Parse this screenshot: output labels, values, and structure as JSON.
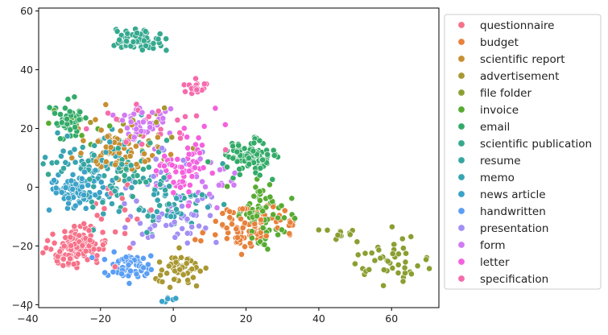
{
  "chart_data": {
    "type": "scatter",
    "title": "",
    "xlabel": "",
    "ylabel": "",
    "xlim": [
      -37,
      73
    ],
    "ylim": [
      -41,
      61
    ],
    "xticks": [
      -40,
      -20,
      0,
      20,
      40,
      60
    ],
    "yticks": [
      -40,
      -20,
      0,
      20,
      40,
      60
    ],
    "grid": false,
    "legend_position": "outside-right",
    "series": [
      {
        "name": "questionnaire",
        "color": "#f77189",
        "clusters": [
          {
            "cx": -27,
            "cy": -21,
            "sx": 3.8,
            "sy": 3.2,
            "n": 140
          },
          {
            "cx": -18,
            "cy": -10,
            "sx": 6,
            "sy": 5,
            "n": 25
          }
        ]
      },
      {
        "name": "budget",
        "color": "#e7813b",
        "clusters": [
          {
            "cx": 19,
            "cy": -14,
            "sx": 5,
            "sy": 3.5,
            "n": 70
          },
          {
            "cx": 28,
            "cy": -10,
            "sx": 3,
            "sy": 2,
            "n": 15
          }
        ]
      },
      {
        "name": "scientific report",
        "color": "#c78f32",
        "clusters": [
          {
            "cx": -14,
            "cy": 12,
            "sx": 5,
            "sy": 4,
            "n": 50
          },
          {
            "cx": -22,
            "cy": 16,
            "sx": 4,
            "sy": 4,
            "n": 20
          }
        ]
      },
      {
        "name": "advertisement",
        "color": "#a99831",
        "clusters": [
          {
            "cx": 2,
            "cy": -28,
            "sx": 3.2,
            "sy": 2.5,
            "n": 55
          },
          {
            "cx": -8,
            "cy": 18,
            "sx": 6,
            "sy": 6,
            "n": 20
          }
        ]
      },
      {
        "name": "file folder",
        "color": "#8a9f31",
        "clusters": [
          {
            "cx": 59,
            "cy": -25,
            "sx": 5.5,
            "sy": 4.5,
            "n": 45
          },
          {
            "cx": 46,
            "cy": -16,
            "sx": 3,
            "sy": 1.5,
            "n": 12
          }
        ]
      },
      {
        "name": "invoice",
        "color": "#58ab32",
        "clusters": [
          {
            "cx": 25,
            "cy": -10,
            "sx": 3.3,
            "sy": 6,
            "n": 80
          },
          {
            "cx": -26,
            "cy": 20,
            "sx": 3,
            "sy": 3,
            "n": 10
          }
        ]
      },
      {
        "name": "email",
        "color": "#33ab68",
        "clusters": [
          {
            "cx": 21,
            "cy": 10,
            "sx": 3.8,
            "sy": 3,
            "n": 100
          },
          {
            "cx": -29,
            "cy": 23,
            "sx": 2.2,
            "sy": 3,
            "n": 45
          }
        ]
      },
      {
        "name": "scientific publication",
        "color": "#35a98e",
        "clusters": [
          {
            "cx": -9,
            "cy": 50,
            "sx": 3,
            "sy": 2,
            "n": 75
          },
          {
            "cx": -12,
            "cy": 8,
            "sx": 7,
            "sy": 7,
            "n": 30
          }
        ]
      },
      {
        "name": "resume",
        "color": "#36a6a2",
        "clusters": [
          {
            "cx": -20,
            "cy": 5,
            "sx": 7,
            "sy": 7,
            "n": 50
          },
          {
            "cx": -2,
            "cy": -2,
            "sx": 7,
            "sy": 5,
            "n": 40
          }
        ]
      },
      {
        "name": "memo",
        "color": "#38a4b3",
        "clusters": [
          {
            "cx": -25,
            "cy": 12,
            "sx": 6,
            "sy": 7,
            "n": 35
          },
          {
            "cx": -5,
            "cy": -5,
            "sx": 8,
            "sy": 4,
            "n": 30
          }
        ]
      },
      {
        "name": "news article",
        "color": "#3ba2c8",
        "clusters": [
          {
            "cx": -27,
            "cy": -1,
            "sx": 4.5,
            "sy": 3.5,
            "n": 90
          },
          {
            "cx": -1,
            "cy": -38,
            "sx": 1,
            "sy": 0.7,
            "n": 6
          }
        ]
      },
      {
        "name": "handwritten",
        "color": "#5a9ef4",
        "clusters": [
          {
            "cx": -13,
            "cy": -27,
            "sx": 3.2,
            "sy": 2.2,
            "n": 60
          }
        ]
      },
      {
        "name": "presentation",
        "color": "#a38ff4",
        "clusters": [
          {
            "cx": 3,
            "cy": -12,
            "sx": 7,
            "sy": 5,
            "n": 45
          },
          {
            "cx": -5,
            "cy": 5,
            "sx": 8,
            "sy": 9,
            "n": 25
          }
        ]
      },
      {
        "name": "form",
        "color": "#d17af4",
        "clusters": [
          {
            "cx": -8,
            "cy": 22,
            "sx": 4,
            "sy": 3,
            "n": 45
          },
          {
            "cx": 12,
            "cy": 3,
            "sx": 5,
            "sy": 5,
            "n": 20
          }
        ]
      },
      {
        "name": "letter",
        "color": "#f461dd",
        "clusters": [
          {
            "cx": 2,
            "cy": 5,
            "sx": 3.5,
            "sy": 3.5,
            "n": 55
          },
          {
            "cx": 6,
            "cy": 18,
            "sx": 4,
            "sy": 4,
            "n": 15
          }
        ]
      },
      {
        "name": "specification",
        "color": "#f66bad",
        "clusters": [
          {
            "cx": 6,
            "cy": 34,
            "sx": 1.6,
            "sy": 1.5,
            "n": 18
          },
          {
            "cx": -6,
            "cy": 20,
            "sx": 7,
            "sy": 5,
            "n": 20
          }
        ]
      }
    ]
  }
}
